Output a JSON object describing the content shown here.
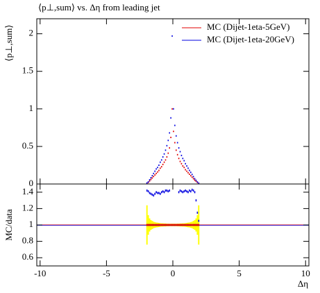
{
  "chart_data": [
    {
      "type": "scatter",
      "title": "⟨p⊥,sum⟩ vs. Δη from leading jet",
      "ylabel": "⟨p⊥,sum⟩",
      "x": [
        -1.95,
        -1.85,
        -1.75,
        -1.65,
        -1.55,
        -1.45,
        -1.35,
        -1.25,
        -1.15,
        -1.05,
        -0.95,
        -0.85,
        -0.75,
        -0.65,
        -0.55,
        -0.45,
        -0.35,
        -0.25,
        -0.15,
        -0.05,
        0.05,
        0.15,
        0.25,
        0.35,
        0.45,
        0.55,
        0.65,
        0.75,
        0.85,
        0.95,
        1.05,
        1.15,
        1.25,
        1.35,
        1.45,
        1.55,
        1.65,
        1.75,
        1.85,
        1.95
      ],
      "series": [
        {
          "name": "MC (Dijet-1eta-5GeV)",
          "color": "#e00000",
          "values": [
            0.01,
            0.02,
            0.04,
            0.06,
            0.08,
            0.1,
            0.12,
            0.14,
            0.16,
            0.18,
            0.21,
            0.23,
            0.26,
            0.29,
            0.32,
            0.36,
            0.41,
            0.48,
            0.62,
            1.0,
            0.7,
            0.55,
            0.45,
            0.39,
            0.34,
            0.3,
            0.27,
            0.24,
            0.22,
            0.19,
            0.17,
            0.15,
            0.13,
            0.11,
            0.09,
            0.07,
            0.05,
            0.035,
            0.02,
            0.01
          ]
        },
        {
          "name": "MC (Dijet-1eta-20GeV)",
          "color": "#0000e0",
          "values": [
            0.014,
            0.028,
            0.055,
            0.083,
            0.11,
            0.14,
            0.17,
            0.2,
            0.22,
            0.25,
            0.29,
            0.32,
            0.36,
            0.4,
            0.45,
            0.51,
            0.58,
            0.68,
            0.88,
            1.97,
            1.0,
            0.78,
            0.64,
            0.55,
            0.48,
            0.43,
            0.38,
            0.34,
            0.31,
            0.27,
            0.24,
            0.21,
            0.18,
            0.155,
            0.127,
            0.098,
            0.07,
            0.049,
            0.027,
            0.011
          ]
        }
      ],
      "xlim": [
        -10.25,
        10.25
      ],
      "ylim": [
        0,
        2.2
      ],
      "yticks": [
        0,
        0.5,
        1,
        1.5,
        2
      ],
      "legend": "upper right"
    },
    {
      "type": "ratio",
      "ylabel": "MC/data",
      "xlabel": "Δη",
      "x": [
        -1.95,
        -1.85,
        -1.75,
        -1.65,
        -1.55,
        -1.45,
        -1.35,
        -1.25,
        -1.15,
        -1.05,
        -0.95,
        -0.85,
        -0.75,
        -0.65,
        -0.55,
        -0.45,
        -0.35,
        -0.25,
        -0.15,
        -0.05,
        0.05,
        0.15,
        0.25,
        0.35,
        0.45,
        0.55,
        0.65,
        0.75,
        0.85,
        0.95,
        1.05,
        1.15,
        1.25,
        1.35,
        1.45,
        1.55,
        1.65,
        1.75,
        1.85,
        1.95
      ],
      "reference": 1,
      "band_color": "#ffff00",
      "band_errors": [
        0.24,
        0.12,
        0.08,
        0.06,
        0.05,
        0.04,
        0.035,
        0.03,
        0.028,
        0.025,
        0.022,
        0.02,
        0.02,
        0.018,
        0.018,
        0.016,
        0.016,
        0.015,
        0.015,
        0.015,
        0.015,
        0.015,
        0.015,
        0.016,
        0.016,
        0.018,
        0.018,
        0.02,
        0.02,
        0.022,
        0.025,
        0.028,
        0.03,
        0.035,
        0.04,
        0.05,
        0.06,
        0.08,
        0.12,
        0.24
      ],
      "series": [
        {
          "color": "#e00000",
          "values": [
            1,
            1,
            1,
            1,
            1,
            1,
            1,
            1,
            1,
            1,
            1,
            1,
            1,
            1,
            1,
            1,
            1,
            1,
            1,
            1,
            1,
            1,
            1,
            1,
            1,
            1,
            1,
            1,
            1,
            1,
            1,
            1,
            1,
            1,
            1,
            1,
            1,
            1,
            1,
            1
          ]
        },
        {
          "color": "#0000e0",
          "values": [
            1.42,
            1.41,
            1.39,
            1.38,
            1.37,
            1.36,
            1.38,
            1.4,
            1.39,
            1.39,
            1.38,
            1.4,
            1.41,
            1.4,
            1.42,
            1.42,
            1.41,
            1.42,
            null,
            null,
            null,
            null,
            null,
            null,
            1.4,
            1.42,
            1.41,
            1.4,
            1.41,
            1.42,
            1.41,
            1.4,
            1.42,
            1.41,
            1.43,
            1.42,
            1.4,
            1.3,
            1.15,
            1.05
          ]
        }
      ],
      "xlim": [
        -10.25,
        10.25
      ],
      "xticks": [
        -10,
        -5,
        0,
        5,
        10
      ],
      "ylim": [
        0.5,
        1.5
      ],
      "yticks": [
        0.6,
        0.8,
        1,
        1.2,
        1.4
      ]
    }
  ]
}
